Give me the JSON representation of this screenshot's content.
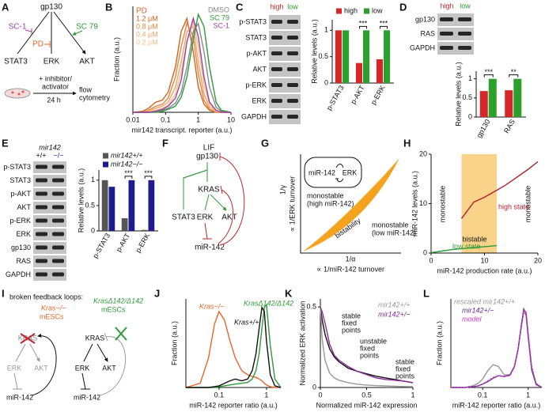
{
  "labels": [
    "A",
    "B",
    "C",
    "D",
    "E",
    "F",
    "G",
    "H",
    "I",
    "J",
    "K",
    "L"
  ],
  "panel_a": {
    "receptor": "gp130",
    "pathways": [
      "STAT3",
      "ERK",
      "AKT"
    ],
    "inhibitors": [
      "SC-1",
      "PD"
    ],
    "activator": "SC 79",
    "treatment": [
      "+ inhibitor/",
      "activator"
    ],
    "duration": "24 h",
    "readout": [
      "flow",
      "cytometry"
    ]
  },
  "panel_f": {
    "nodes": [
      "LIF",
      "gp130",
      "KRAS",
      "STAT3",
      "ERK",
      "AKT",
      "miR-142"
    ]
  },
  "panel_g": {
    "xlabel": "∝ 1/miR-142 turnover",
    "xsymbol": "1/α",
    "ylabel": "∝ 1/ERK turnover",
    "ysymbol": "1/γ",
    "region": "bistability",
    "upper": [
      "monostable",
      "(high miR-142)"
    ],
    "lower": [
      "monostable",
      "(low miR-142)"
    ],
    "inset": [
      "miR-142",
      "ERK"
    ]
  },
  "panel_i": {
    "title": "broken feedback loops:",
    "left": {
      "genotype": "Kras−/−",
      "cells": "mESCs",
      "nodes": [
        "KRAS",
        "ERK",
        "AKT",
        "miR-142"
      ]
    },
    "right": {
      "genotype": "KrasΔ142/Δ142",
      "cells": "mESCs",
      "nodes": [
        "KRAS",
        "ERK",
        "AKT",
        "miR-142"
      ]
    }
  },
  "chart_data": [
    {
      "type": "line",
      "xlabel": "mir142 transcript. reporter (a.u.)",
      "ylabel": "Fraction (a.u.)",
      "xlog": true,
      "xlim": [
        0.01,
        10
      ],
      "xticks": [
        0.01,
        0.1,
        1,
        10
      ],
      "ylim": [
        0,
        1.05
      ],
      "legend_title": "PD",
      "x": [
        0.01,
        0.02,
        0.03,
        0.05,
        0.08,
        0.12,
        0.2,
        0.3,
        0.45,
        0.7,
        1,
        1.5,
        2.2,
        3.5,
        5,
        10
      ],
      "series": [
        {
          "name": "1.2 μM",
          "color": "#d9601a",
          "values": [
            0,
            0.01,
            0.04,
            0.1,
            0.12,
            0.2,
            0.45,
            0.8,
            0.93,
            0.6,
            0.25,
            0.08,
            0.02,
            0,
            0,
            0
          ]
        },
        {
          "name": "0.8 μM",
          "color": "#e8853e",
          "values": [
            0,
            0,
            0.02,
            0.06,
            0.08,
            0.14,
            0.35,
            0.65,
            0.88,
            0.75,
            0.38,
            0.12,
            0.03,
            0,
            0,
            0
          ]
        },
        {
          "name": "0.4 μM",
          "color": "#efa566",
          "values": [
            0,
            0,
            0.01,
            0.04,
            0.06,
            0.1,
            0.25,
            0.5,
            0.8,
            0.85,
            0.5,
            0.18,
            0.05,
            0.01,
            0,
            0
          ]
        },
        {
          "name": "0.2 μM",
          "color": "#f3c08e",
          "values": [
            0,
            0,
            0,
            0.02,
            0.04,
            0.07,
            0.18,
            0.4,
            0.7,
            0.9,
            0.65,
            0.27,
            0.08,
            0.01,
            0,
            0
          ]
        },
        {
          "name": "DMSO",
          "color": "#8a8a8a",
          "values": [
            0,
            0,
            0,
            0.01,
            0.02,
            0.04,
            0.09,
            0.2,
            0.45,
            0.8,
            0.88,
            0.6,
            0.25,
            0.05,
            0.01,
            0
          ]
        },
        {
          "name": "SC 79",
          "color": "#2e9a3a",
          "values": [
            0,
            0,
            0,
            0,
            0.01,
            0.03,
            0.06,
            0.15,
            0.35,
            0.72,
            0.97,
            0.85,
            0.45,
            0.1,
            0.02,
            0
          ]
        },
        {
          "name": "SC-1",
          "color": "#9b3fa6",
          "values": [
            0,
            0,
            0,
            0.01,
            0.03,
            0.06,
            0.14,
            0.32,
            0.7,
            0.93,
            0.75,
            0.35,
            0.1,
            0.02,
            0,
            0
          ]
        }
      ]
    },
    {
      "type": "bar",
      "ylabel": "Relative levels (a.u.)",
      "categories": [
        "p-STAT3",
        "p-AKT",
        "p-ERK"
      ],
      "blots": [
        "p-STAT3",
        "STAT3",
        "p-AKT",
        "AKT",
        "p-ERK",
        "ERK",
        "GAPDH"
      ],
      "series": [
        {
          "name": "high",
          "color": "#d62728",
          "values": [
            1,
            0.38,
            0.45
          ]
        },
        {
          "name": "low",
          "color": "#2ca02c",
          "values": [
            1,
            1,
            1
          ]
        }
      ],
      "ylim": [
        0,
        1.2
      ],
      "yticks": [
        0,
        0.5,
        1
      ],
      "significance": [
        null,
        "***",
        "***"
      ]
    },
    {
      "type": "bar",
      "ylabel": "Relative levels (a.u.)",
      "categories": [
        "gp130",
        "RAS"
      ],
      "blots": [
        "gp130",
        "RAS",
        "GAPDH"
      ],
      "series": [
        {
          "name": "high",
          "color": "#d62728",
          "values": [
            0.68,
            0.7
          ]
        },
        {
          "name": "low",
          "color": "#2ca02c",
          "values": [
            1,
            1
          ]
        }
      ],
      "ylim": [
        0,
        1.2
      ],
      "yticks": [
        0,
        0.5,
        1
      ],
      "significance": [
        "***",
        "**"
      ]
    },
    {
      "type": "bar",
      "ylabel": "Relative levels (a.u.)",
      "categories": [
        "p-STAT3",
        "p-AKT",
        "p-ERK"
      ],
      "blots": [
        "p-STAT3",
        "STAT3",
        "p-AKT",
        "AKT",
        "p-ERK",
        "ERK",
        "gp130",
        "RAS",
        "GAPDH"
      ],
      "blot_header": "mir142",
      "lanes": [
        "+/+",
        "−/−"
      ],
      "series": [
        {
          "name": "mir142+/+",
          "color": "#555555",
          "values": [
            1,
            0.25,
            0.02
          ]
        },
        {
          "name": "mir142−/−",
          "color": "#1c1c8f",
          "values": [
            0.87,
            1,
            1
          ]
        }
      ],
      "ylim": [
        0,
        1.2
      ],
      "yticks": [
        0,
        0.5,
        1
      ],
      "significance": [
        null,
        "***",
        "***"
      ]
    },
    {
      "type": "line",
      "xlabel": "miR-142 production rate (a.u.)",
      "ylabel": "miR-142 levels (a.u.)",
      "xlim": [
        0,
        20
      ],
      "ylim": [
        0,
        20
      ],
      "xticks": [
        0,
        10,
        20
      ],
      "yticks": [
        0,
        10,
        20
      ],
      "shaded_range": [
        5.7,
        12.3
      ],
      "regions": [
        "monostable",
        "bistable",
        "monostable"
      ],
      "x": [
        0,
        2,
        4,
        5.7,
        8,
        10,
        12.3,
        14,
        16,
        18,
        20
      ],
      "series": [
        {
          "name": "low state",
          "color": "#2e9a3a",
          "values": [
            0.1,
            0.4,
            0.7,
            0.9,
            1.1,
            1.3,
            1.5,
            null,
            null,
            null,
            null
          ]
        },
        {
          "name": "high state",
          "color": "#b3202a",
          "values": [
            null,
            null,
            null,
            7,
            10.3,
            11.3,
            12.7,
            13.8,
            15.3,
            16.8,
            18.5
          ]
        }
      ]
    },
    {
      "type": "line",
      "xlabel": "miR-142 reporter ratio (a.u.)",
      "ylabel": "Fraction (a.u.)",
      "xlog": true,
      "xlim": [
        0.02,
        2
      ],
      "xticks": [
        0.1,
        1
      ],
      "ylim": [
        0,
        1.05
      ],
      "x": [
        0.02,
        0.04,
        0.06,
        0.08,
        0.1,
        0.13,
        0.17,
        0.22,
        0.3,
        0.4,
        0.5,
        0.6,
        0.7,
        0.8,
        0.9,
        1,
        1.2,
        1.5,
        2
      ],
      "series": [
        {
          "name": "Kras−/−",
          "color": "#e8652a",
          "values": [
            0,
            0.05,
            0.35,
            0.75,
            0.9,
            0.8,
            0.55,
            0.35,
            0.2,
            0.15,
            0.13,
            0.12,
            0.1,
            0.08,
            0.05,
            0.03,
            0.01,
            0,
            0
          ]
        },
        {
          "name": "KrasΔ142/Δ142",
          "color": "#2e9a3a",
          "values": [
            0,
            0,
            0,
            0,
            0.01,
            0.02,
            0.03,
            0.04,
            0.05,
            0.06,
            0.1,
            0.2,
            0.4,
            0.7,
            0.95,
            0.98,
            0.5,
            0.1,
            0
          ]
        },
        {
          "name": "Kras+/+",
          "color": "#111111",
          "values": [
            0,
            0,
            0,
            0.01,
            0.02,
            0.05,
            0.08,
            0.1,
            0.08,
            0.1,
            0.2,
            0.4,
            0.7,
            0.95,
            0.9,
            0.55,
            0.15,
            0.02,
            0
          ]
        }
      ]
    },
    {
      "type": "line",
      "xlabel": "Normalized miR-142 expression",
      "ylabel": "Normalized ERK activation",
      "xlim": [
        0,
        1
      ],
      "xticks": [
        0,
        0.5,
        1
      ],
      "ylim": [
        0,
        0.55
      ],
      "yticks": [
        0,
        0.5
      ],
      "annotations": [
        [
          "stable",
          "fixed",
          "points"
        ],
        [
          "unstable",
          "fixed",
          "points"
        ],
        [
          "stable",
          "fixed",
          "points"
        ]
      ],
      "x": [
        0,
        0.02,
        0.05,
        0.1,
        0.15,
        0.2,
        0.3,
        0.4,
        0.5,
        0.6,
        0.7,
        0.8,
        0.9,
        1
      ],
      "series": [
        {
          "color": "#111111",
          "values": [
            0.5,
            0.42,
            0.33,
            0.24,
            0.19,
            0.16,
            0.12,
            0.1,
            0.085,
            0.07,
            0.06,
            0.05,
            0.04,
            0.03
          ]
        },
        {
          "name": "mir142+/+",
          "color": "#999999",
          "values": [
            0.5,
            0.3,
            0.17,
            0.09,
            0.06,
            0.045,
            0.03,
            0.02,
            0.015,
            0.012,
            0.01,
            0.008,
            0.006,
            0.005
          ]
        },
        {
          "name": "mir142+/−",
          "color": "#8b2a9a",
          "values": [
            0.5,
            0.47,
            0.4,
            0.27,
            0.2,
            0.17,
            0.13,
            0.1,
            0.08,
            0.06,
            0.05,
            0.045,
            0.04,
            0.03
          ]
        }
      ]
    },
    {
      "type": "line",
      "xlabel": "miR-142 reporter ratio (a.u.)",
      "ylabel": "Fraction (a.u.)",
      "xlog": true,
      "xlim": [
        0.02,
        2
      ],
      "xticks": [
        0.1,
        1
      ],
      "ylim": [
        0,
        1.05
      ],
      "x": [
        0.02,
        0.04,
        0.06,
        0.08,
        0.1,
        0.13,
        0.17,
        0.22,
        0.3,
        0.4,
        0.5,
        0.6,
        0.7,
        0.8,
        0.9,
        1,
        1.2,
        1.5,
        2
      ],
      "series": [
        {
          "name": "rescaled mir142+/+",
          "color": "#999999",
          "values": [
            0,
            0,
            0.02,
            0.05,
            0.1,
            0.2,
            0.27,
            0.25,
            0.15,
            0.15,
            0.25,
            0.45,
            0.7,
            0.9,
            0.85,
            0.6,
            0.2,
            0.03,
            0
          ]
        },
        {
          "name": "mir142+/−",
          "color": "#6a2a8a",
          "values": [
            0,
            0,
            0.01,
            0.02,
            0.04,
            0.07,
            0.11,
            0.14,
            0.13,
            0.15,
            0.25,
            0.45,
            0.72,
            0.93,
            0.88,
            0.62,
            0.22,
            0.04,
            0
          ]
        },
        {
          "name": "model",
          "color": "#d23ad2",
          "dashed": true,
          "values": [
            0,
            0,
            0.01,
            0.02,
            0.04,
            0.08,
            0.12,
            0.14,
            0.13,
            0.14,
            0.24,
            0.44,
            0.7,
            0.92,
            0.9,
            0.65,
            0.25,
            0.05,
            0
          ]
        }
      ]
    }
  ]
}
